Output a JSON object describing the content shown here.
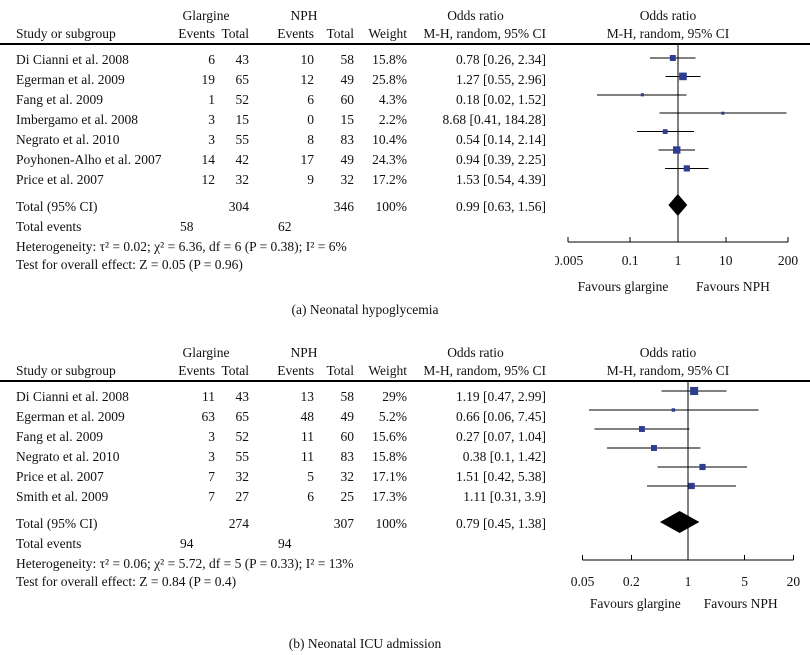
{
  "colors": {
    "marker": "#2e3d8f",
    "diamond": "#000000",
    "line": "#000000",
    "text": "#111111",
    "background": "#ffffff"
  },
  "chart_data": [
    {
      "type": "scatter",
      "subtype": "forest-plot",
      "caption": "(a) Neonatal hypoglycemia",
      "header": {
        "study": "Study or subgroup",
        "group1": "Glargine",
        "group2": "NPH",
        "events": "Events",
        "total": "Total",
        "weight": "Weight",
        "or_title": "Odds ratio",
        "or_sub": "M-H, random, 95% CI"
      },
      "studies": [
        {
          "name": "Di Cianni et al. 2008",
          "glargine_events": 6,
          "glargine_total": 43,
          "nph_events": 10,
          "nph_total": 58,
          "weight": "15.8%",
          "weight_pct": 15.8,
          "or": 0.78,
          "ci_low": 0.26,
          "ci_high": 2.34,
          "or_text": "0.78 [0.26, 2.34]"
        },
        {
          "name": "Egerman et al. 2009",
          "glargine_events": 19,
          "glargine_total": 65,
          "nph_events": 12,
          "nph_total": 49,
          "weight": "25.8%",
          "weight_pct": 25.8,
          "or": 1.27,
          "ci_low": 0.55,
          "ci_high": 2.96,
          "or_text": "1.27 [0.55, 2.96]"
        },
        {
          "name": "Fang et al. 2009",
          "glargine_events": 1,
          "glargine_total": 52,
          "nph_events": 6,
          "nph_total": 60,
          "weight": "4.3%",
          "weight_pct": 4.3,
          "or": 0.18,
          "ci_low": 0.02,
          "ci_high": 1.52,
          "or_text": "0.18 [0.02, 1.52]"
        },
        {
          "name": "Imbergamo et al. 2008",
          "glargine_events": 3,
          "glargine_total": 15,
          "nph_events": 0,
          "nph_total": 15,
          "weight": "2.2%",
          "weight_pct": 2.2,
          "or": 8.68,
          "ci_low": 0.41,
          "ci_high": 184.28,
          "or_text": "8.68 [0.41, 184.28]"
        },
        {
          "name": "Negrato et al. 2010",
          "glargine_events": 3,
          "glargine_total": 55,
          "nph_events": 8,
          "nph_total": 83,
          "weight": "10.4%",
          "weight_pct": 10.4,
          "or": 0.54,
          "ci_low": 0.14,
          "ci_high": 2.14,
          "or_text": "0.54 [0.14, 2.14]"
        },
        {
          "name": "Poyhonen-Alho et al. 2007",
          "glargine_events": 14,
          "glargine_total": 42,
          "nph_events": 17,
          "nph_total": 49,
          "weight": "24.3%",
          "weight_pct": 24.3,
          "or": 0.94,
          "ci_low": 0.39,
          "ci_high": 2.25,
          "or_text": "0.94 [0.39, 2.25]"
        },
        {
          "name": "Price et al. 2007",
          "glargine_events": 12,
          "glargine_total": 32,
          "nph_events": 9,
          "nph_total": 32,
          "weight": "17.2%",
          "weight_pct": 17.2,
          "or": 1.53,
          "ci_low": 0.54,
          "ci_high": 4.39,
          "or_text": "1.53 [0.54, 4.39]"
        }
      ],
      "total": {
        "label": "Total (95% CI)",
        "glargine_total": 304,
        "nph_total": 346,
        "weight": "100%",
        "or": 0.99,
        "ci_low": 0.63,
        "ci_high": 1.56,
        "or_text": "0.99 [0.63, 1.56]"
      },
      "total_events": {
        "label": "Total events",
        "glargine": 58,
        "nph": 62
      },
      "heterogeneity": "Heterogeneity: τ² = 0.02; χ² = 6.36, df = 6 (P = 0.38); I² = 6%",
      "overall_effect": "Test for overall effect: Z = 0.05 (P = 0.96)",
      "axis": {
        "scale": "log",
        "min": 0.005,
        "max": 200,
        "ticks": [
          "0.005",
          "0.1",
          "1",
          "10",
          "200"
        ],
        "tick_values": [
          0.005,
          0.1,
          1,
          10,
          200
        ]
      },
      "favours_left": "Favours glargine",
      "favours_right": "Favours NPH"
    },
    {
      "type": "scatter",
      "subtype": "forest-plot",
      "caption": "(b) Neonatal ICU admission",
      "header": {
        "study": "Study or subgroup",
        "group1": "Glargine",
        "group2": "NPH",
        "events": "Events",
        "total": "Total",
        "weight": "Weight",
        "or_title": "Odds ratio",
        "or_sub": "M-H, random, 95% CI"
      },
      "studies": [
        {
          "name": "Di Cianni et al. 2008",
          "glargine_events": 11,
          "glargine_total": 43,
          "nph_events": 13,
          "nph_total": 58,
          "weight": "29%",
          "weight_pct": 29.0,
          "or": 1.19,
          "ci_low": 0.47,
          "ci_high": 2.99,
          "or_text": "1.19 [0.47, 2.99]"
        },
        {
          "name": "Egerman et al. 2009",
          "glargine_events": 63,
          "glargine_total": 65,
          "nph_events": 48,
          "nph_total": 49,
          "weight": "5.2%",
          "weight_pct": 5.2,
          "or": 0.66,
          "ci_low": 0.06,
          "ci_high": 7.45,
          "or_text": "0.66 [0.06, 7.45]"
        },
        {
          "name": "Fang et al. 2009",
          "glargine_events": 3,
          "glargine_total": 52,
          "nph_events": 11,
          "nph_total": 60,
          "weight": "15.6%",
          "weight_pct": 15.6,
          "or": 0.27,
          "ci_low": 0.07,
          "ci_high": 1.04,
          "or_text": "0.27 [0.07, 1.04]"
        },
        {
          "name": "Negrato et al. 2010",
          "glargine_events": 3,
          "glargine_total": 55,
          "nph_events": 11,
          "nph_total": 83,
          "weight": "15.8%",
          "weight_pct": 15.8,
          "or": 0.38,
          "ci_low": 0.1,
          "ci_high": 1.42,
          "or_text": "0.38 [0.1, 1.42]"
        },
        {
          "name": "Price et al. 2007",
          "glargine_events": 7,
          "glargine_total": 32,
          "nph_events": 5,
          "nph_total": 32,
          "weight": "17.1%",
          "weight_pct": 17.1,
          "or": 1.51,
          "ci_low": 0.42,
          "ci_high": 5.38,
          "or_text": "1.51 [0.42, 5.38]"
        },
        {
          "name": "Smith et al. 2009",
          "glargine_events": 7,
          "glargine_total": 27,
          "nph_events": 6,
          "nph_total": 25,
          "weight": "17.3%",
          "weight_pct": 17.3,
          "or": 1.11,
          "ci_low": 0.31,
          "ci_high": 3.9,
          "or_text": "1.11 [0.31, 3.9]"
        }
      ],
      "total": {
        "label": "Total (95% CI)",
        "glargine_total": 274,
        "nph_total": 307,
        "weight": "100%",
        "or": 0.79,
        "ci_low": 0.45,
        "ci_high": 1.38,
        "or_text": "0.79 [0.45, 1.38]"
      },
      "total_events": {
        "label": "Total events",
        "glargine": 94,
        "nph": 94
      },
      "heterogeneity": "Heterogeneity: τ² = 0.06; χ² = 5.72, df = 5 (P = 0.33); I² = 13%",
      "overall_effect": "Test for overall effect: Z = 0.84 (P = 0.4)",
      "axis": {
        "scale": "log",
        "min": 0.05,
        "max": 20,
        "ticks": [
          "0.05",
          "0.2",
          "1",
          "5",
          "20"
        ],
        "tick_values": [
          0.05,
          0.2,
          1,
          5,
          20
        ]
      },
      "favours_left": "Favours glargine",
      "favours_right": "Favours NPH"
    }
  ]
}
